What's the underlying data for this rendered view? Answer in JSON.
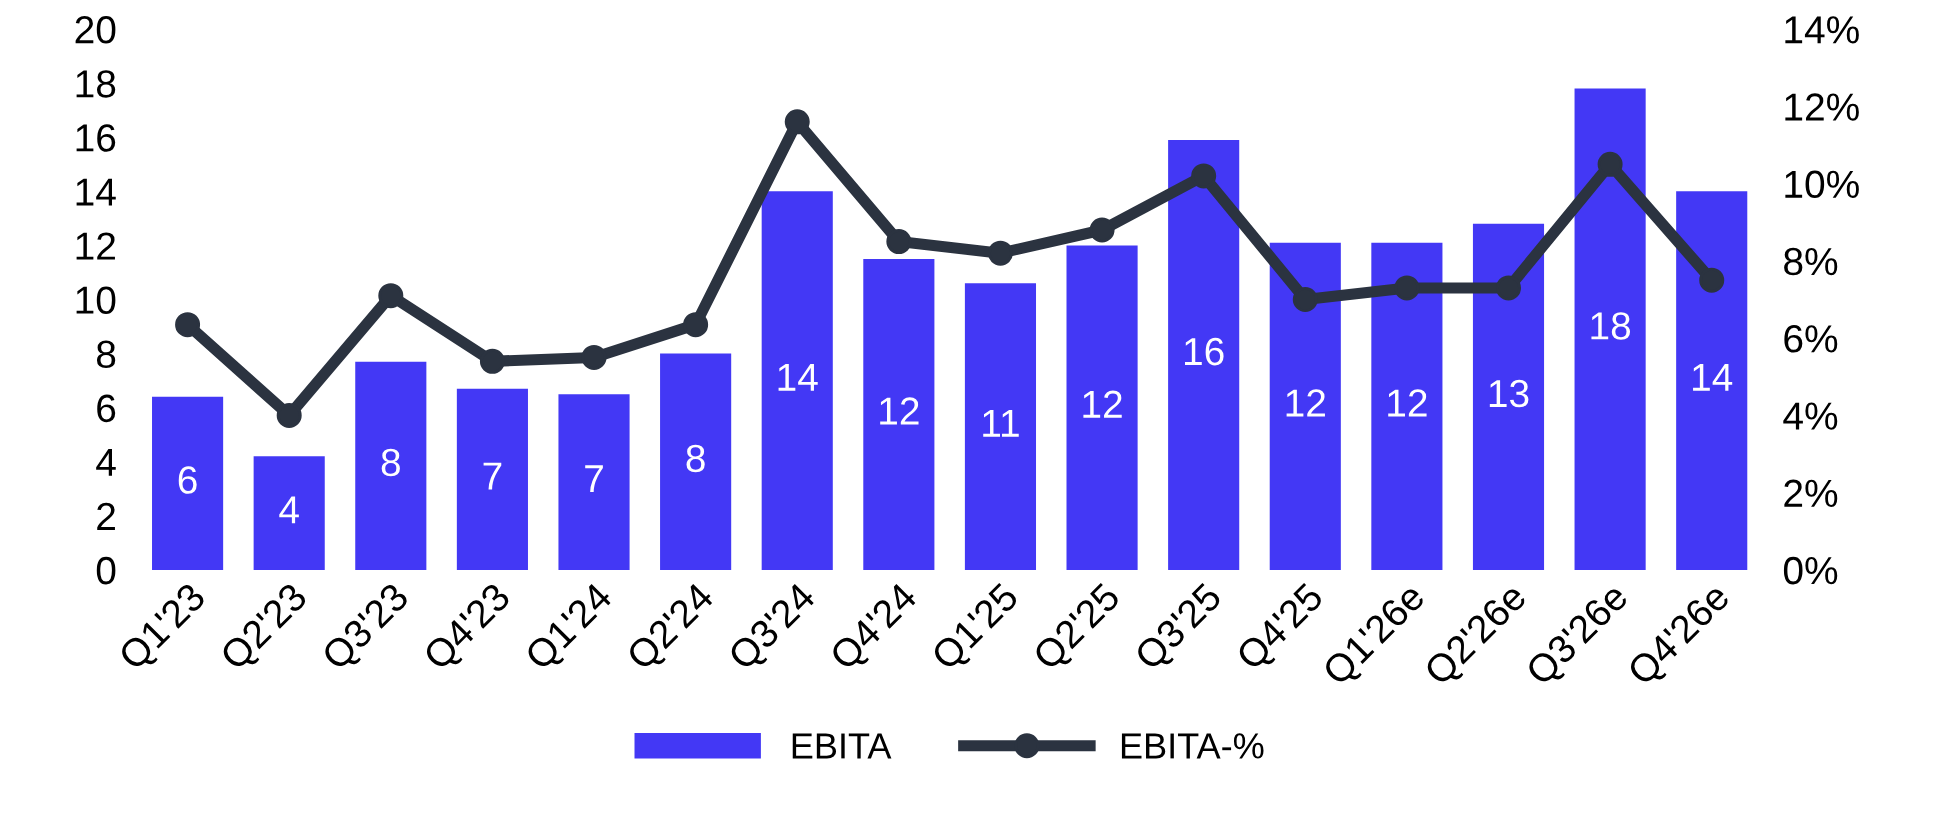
{
  "chart_data": {
    "type": "bar",
    "categories": [
      "Q1'23",
      "Q2'23",
      "Q3'23",
      "Q4'23",
      "Q1'24",
      "Q2'24",
      "Q3'24",
      "Q4'24",
      "Q1'25",
      "Q2'25",
      "Q3'25",
      "Q4'25",
      "Q1'26e",
      "Q2'26e",
      "Q3'26e",
      "Q4'26e"
    ],
    "series": [
      {
        "name": "EBITA",
        "color": "#4338f5",
        "values": [
          6.4,
          4.2,
          7.7,
          6.7,
          6.5,
          8.0,
          14.0,
          11.5,
          10.6,
          12.0,
          15.9,
          12.1,
          12.1,
          12.8,
          17.8,
          14.0
        ],
        "value_labels": [
          "6",
          "4",
          "8",
          "7",
          "7",
          "8",
          "14",
          "12",
          "11",
          "12",
          "16",
          "12",
          "12",
          "13",
          "18",
          "14"
        ]
      },
      {
        "name": "EBITA-%",
        "type": "line",
        "axis": "y2",
        "color": "#2b3340",
        "marker": "circle",
        "values": [
          6.35,
          4.0,
          7.1,
          5.4,
          5.5,
          6.35,
          11.6,
          8.5,
          8.2,
          8.8,
          10.2,
          7.0,
          7.3,
          7.3,
          10.5,
          7.5
        ]
      }
    ],
    "ylim": [
      0,
      20
    ],
    "yticks": [
      0,
      2,
      4,
      6,
      8,
      10,
      12,
      14,
      16,
      18,
      20
    ],
    "y2lim": [
      0,
      14
    ],
    "y2ticks": [
      {
        "value": 0,
        "label": "0%"
      },
      {
        "value": 2,
        "label": "2%"
      },
      {
        "value": 4,
        "label": "4%"
      },
      {
        "value": 6,
        "label": "6%"
      },
      {
        "value": 8,
        "label": "8%"
      },
      {
        "value": 10,
        "label": "10%"
      },
      {
        "value": 12,
        "label": "12%"
      },
      {
        "value": 14,
        "label": "14%"
      }
    ],
    "grid": false,
    "legend": "bottom"
  }
}
